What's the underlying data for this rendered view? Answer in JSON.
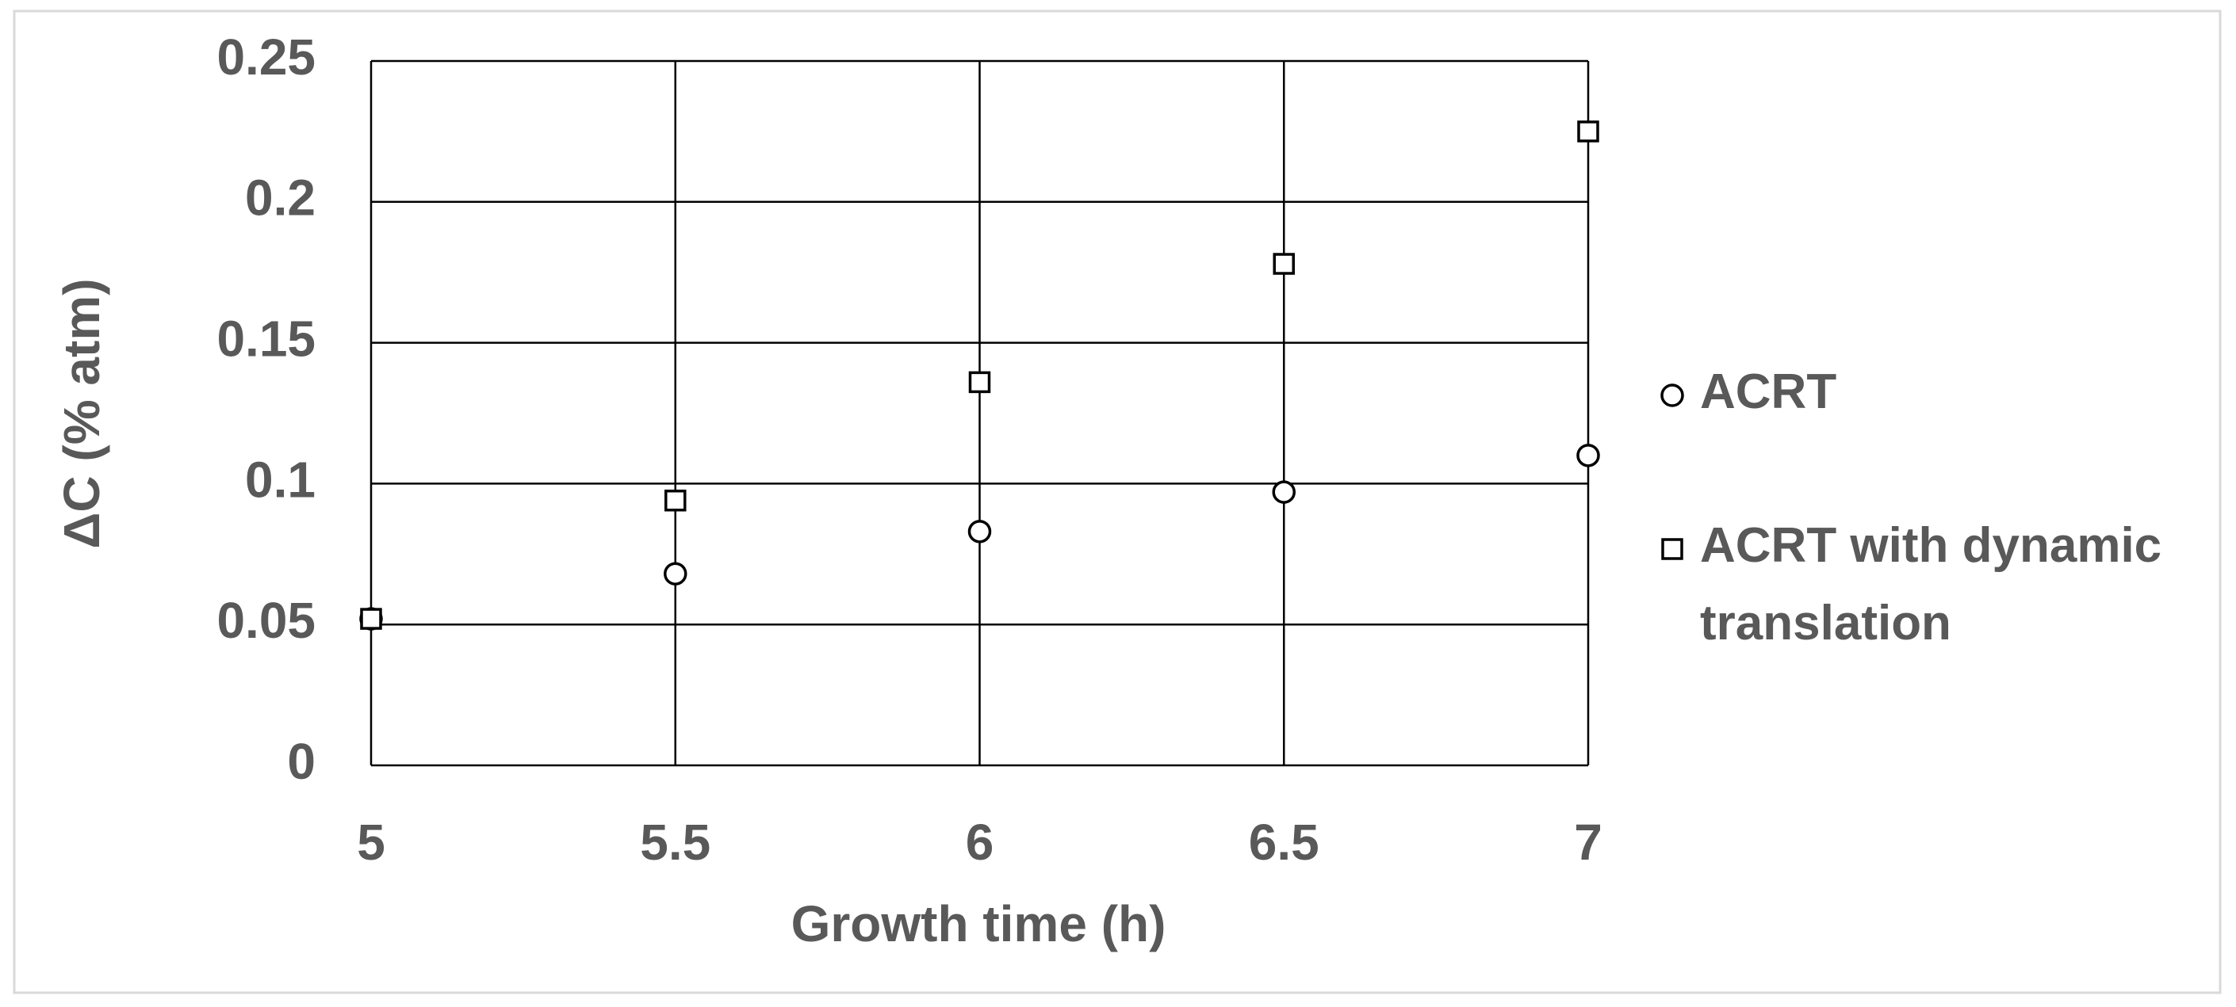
{
  "chart_data": {
    "type": "scatter",
    "x_label": "Growth time (h)",
    "y_label": "ΔC (% atm)",
    "x": [
      5,
      5.5,
      6,
      6.5,
      7
    ],
    "series": [
      {
        "name": "ACRT",
        "color": "#000000",
        "marker": "circle",
        "values": [
          0.052,
          0.068,
          0.083,
          0.097,
          0.11
        ]
      },
      {
        "name": "ACRT with dynamic translation",
        "color": "#000000",
        "marker": "square",
        "values": [
          0.052,
          0.094,
          0.136,
          0.178,
          0.225
        ]
      }
    ],
    "xlim": [
      5,
      7
    ],
    "xticks": [
      5,
      5.5,
      6,
      6.5,
      7
    ],
    "ylim": [
      0,
      0.25
    ],
    "yticks": [
      0,
      0.05,
      0.1,
      0.15,
      0.2,
      0.25
    ],
    "grid": true,
    "legend": "right"
  }
}
